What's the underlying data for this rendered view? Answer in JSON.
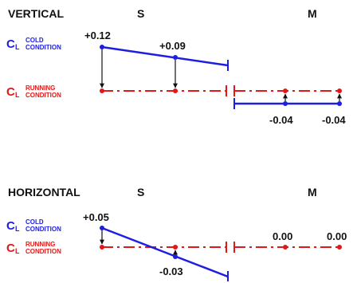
{
  "colors": {
    "cold": "#1e1ee0",
    "running": "#e01818",
    "text": "#111111"
  },
  "vertical": {
    "title": "VERTICAL",
    "s_label": "S",
    "m_label": "M",
    "cold_symbol": "C",
    "cold_subscript": "L",
    "cold_word1": "COLD",
    "cold_word2": "CONDITION",
    "running_symbol": "C",
    "running_subscript": "L",
    "running_word1": "RUNNING",
    "running_word2": "CONDITION",
    "values": {
      "v1": "+0.12",
      "v2": "+0.09",
      "v3": "-0.04",
      "v4": "-0.04"
    }
  },
  "horizontal": {
    "title": "HORIZONTAL",
    "s_label": "S",
    "m_label": "M",
    "cold_symbol": "C",
    "cold_subscript": "L",
    "cold_word1": "COLD",
    "cold_word2": "CONDITION",
    "running_symbol": "C",
    "running_subscript": "L",
    "running_word1": "RUNNING",
    "running_word2": "CONDITION",
    "values": {
      "v1": "+0.05",
      "v2": "-0.03",
      "v3": "0.00",
      "v4": "0.00"
    }
  }
}
